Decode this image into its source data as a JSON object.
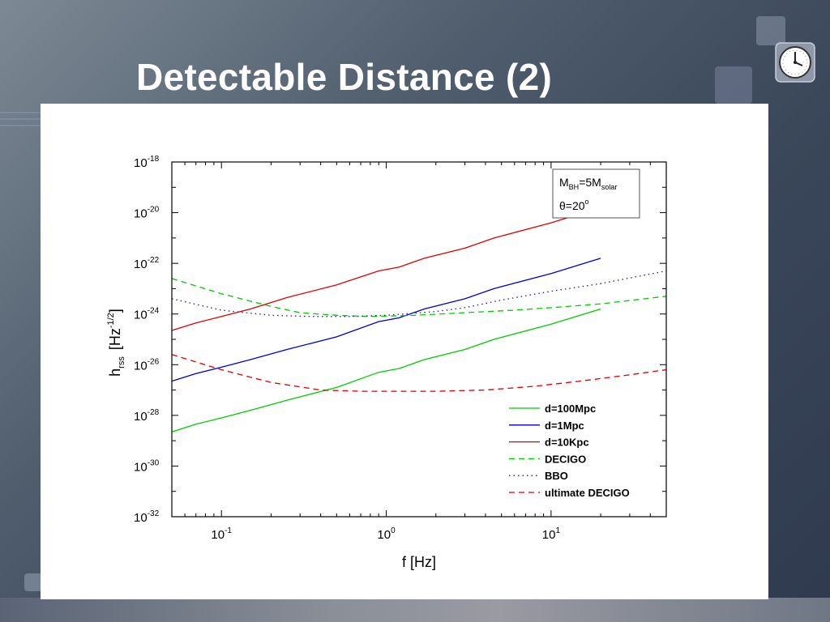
{
  "slide": {
    "title": "Detectable Distance (2)",
    "background_color": "#3f4b5e",
    "logo_icon": "clock-icon"
  },
  "chart_data": {
    "type": "line",
    "xlabel": "f [Hz]",
    "ylabel": "h",
    "ylabel_sub": "rss",
    "ylabel_unit": "[Hz",
    "ylabel_unit_sup": "-1/2",
    "ylabel_unit_close": "]",
    "x_scale": "log",
    "y_scale": "log",
    "xlim": [
      0.05,
      50
    ],
    "ylim": [
      1e-32,
      1e-18
    ],
    "x_ticks": [
      {
        "value": 0.1,
        "base": "10",
        "exp": "-1"
      },
      {
        "value": 1,
        "base": "10",
        "exp": "0"
      },
      {
        "value": 10,
        "base": "10",
        "exp": "1"
      }
    ],
    "y_ticks": [
      {
        "value": 1e-18,
        "base": "10",
        "exp": "-18"
      },
      {
        "value": 1e-20,
        "base": "10",
        "exp": "-20"
      },
      {
        "value": 1e-22,
        "base": "10",
        "exp": "-22"
      },
      {
        "value": 1e-24,
        "base": "10",
        "exp": "-24"
      },
      {
        "value": 1e-26,
        "base": "10",
        "exp": "-26"
      },
      {
        "value": 1e-28,
        "base": "10",
        "exp": "-28"
      },
      {
        "value": 1e-30,
        "base": "10",
        "exp": "-30"
      },
      {
        "value": 1e-32,
        "base": "10",
        "exp": "-32"
      }
    ],
    "grid": false,
    "legend_position": "bottom-right",
    "annotation": {
      "line1_base": "M",
      "line1_sub": "BH",
      "line1_mid": "=5M",
      "line1_sub2": "solar",
      "line2_base": "θ=20",
      "line2_sup": "o"
    },
    "series": [
      {
        "name": "d=100Mpc",
        "color": "#00cc00",
        "dash": "solid",
        "x": [
          0.05,
          0.07,
          0.1,
          0.15,
          0.25,
          0.5,
          0.9,
          1.2,
          1.7,
          3,
          4.5,
          10,
          20
        ],
        "y": [
          -28.65,
          -28.35,
          -28.1,
          -27.8,
          -27.4,
          -26.9,
          -26.3,
          -26.15,
          -25.8,
          -25.4,
          -25.0,
          -24.4,
          -23.8
        ]
      },
      {
        "name": "d=1Mpc",
        "color": "#0000cc",
        "dash": "solid",
        "x": [
          0.05,
          0.07,
          0.1,
          0.15,
          0.25,
          0.5,
          0.9,
          1.2,
          1.7,
          3,
          4.5,
          10,
          20
        ],
        "y": [
          -26.65,
          -26.35,
          -26.1,
          -25.8,
          -25.4,
          -24.9,
          -24.3,
          -24.15,
          -23.8,
          -23.4,
          -23.0,
          -22.4,
          -21.8
        ]
      },
      {
        "name": "d=10Kpc",
        "color": "#dd0000",
        "dash": "solid",
        "x": [
          0.05,
          0.07,
          0.1,
          0.15,
          0.25,
          0.5,
          0.9,
          1.2,
          1.7,
          3,
          4.5,
          10,
          20
        ],
        "y": [
          -24.65,
          -24.35,
          -24.1,
          -23.8,
          -23.35,
          -22.85,
          -22.3,
          -22.15,
          -21.8,
          -21.4,
          -21.0,
          -20.4,
          -19.8
        ]
      },
      {
        "name": "DECIGO",
        "color": "#00cc00",
        "dash": "dashed",
        "x": [
          0.05,
          0.1,
          0.2,
          0.3,
          0.5,
          0.8,
          1.5,
          3,
          6,
          10,
          20,
          50
        ],
        "y": [
          -22.6,
          -23.2,
          -23.7,
          -23.95,
          -24.05,
          -24.1,
          -24.05,
          -23.95,
          -23.85,
          -23.75,
          -23.6,
          -23.3
        ]
      },
      {
        "name": "BBO",
        "color": "#1a1aaa",
        "dash": "dotted",
        "x": [
          0.05,
          0.1,
          0.2,
          0.35,
          0.6,
          1,
          2,
          3,
          5,
          10,
          20,
          50
        ],
        "y": [
          -23.4,
          -23.85,
          -24.05,
          -24.1,
          -24.1,
          -24.05,
          -23.9,
          -23.75,
          -23.45,
          -23.1,
          -22.8,
          -22.3
        ]
      },
      {
        "name": "ultimate DECIGO",
        "color": "#dd0000",
        "dash": "dashed",
        "x": [
          0.05,
          0.1,
          0.2,
          0.4,
          0.7,
          1,
          2,
          4,
          8,
          15,
          30,
          50
        ],
        "y": [
          -25.6,
          -26.2,
          -26.7,
          -27.0,
          -27.05,
          -27.05,
          -27.05,
          -27.0,
          -26.85,
          -26.65,
          -26.4,
          -26.2
        ]
      }
    ]
  }
}
